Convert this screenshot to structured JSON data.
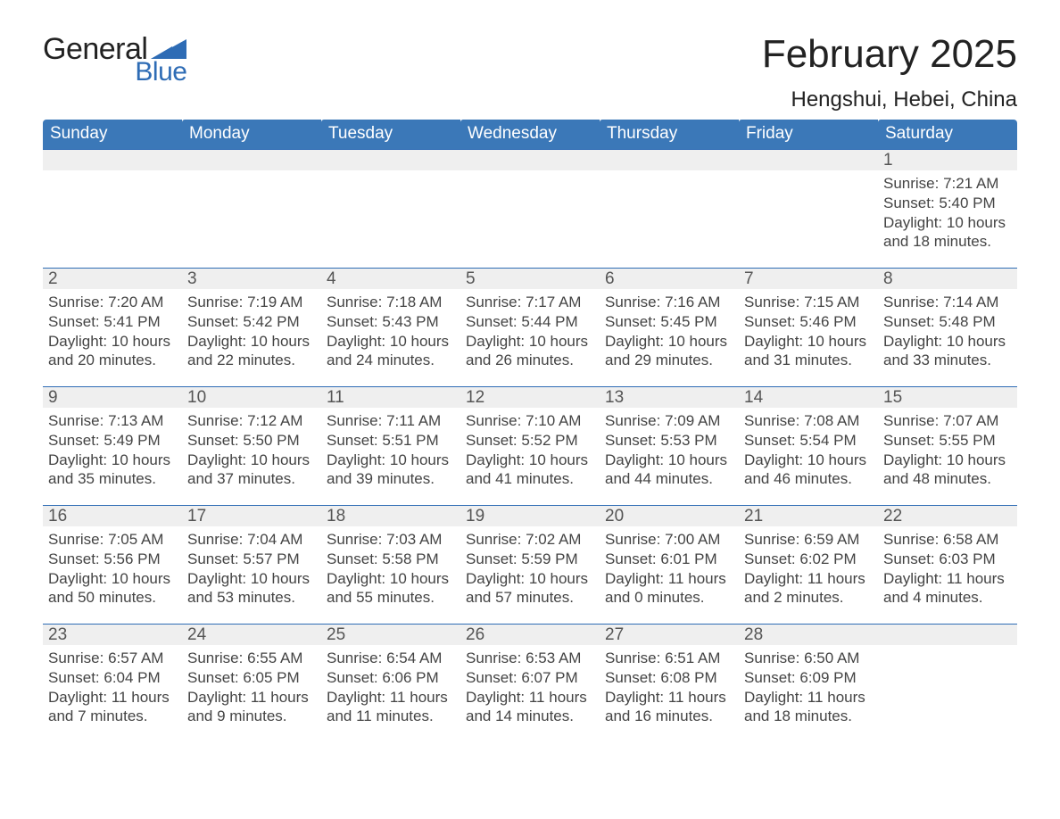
{
  "brand": {
    "word1": "General",
    "word2": "Blue",
    "accent_color": "#2e6cb5"
  },
  "header": {
    "title": "February 2025",
    "location": "Hengshui, Hebei, China"
  },
  "style": {
    "header_bg": "#3b78b8",
    "stripe_bg": "#efefef",
    "border_line": "#2e6cb5",
    "title_fontsize": 44,
    "location_fontsize": 24,
    "weekday_fontsize": 19,
    "body_fontsize": 17
  },
  "weekdays": [
    "Sunday",
    "Monday",
    "Tuesday",
    "Wednesday",
    "Thursday",
    "Friday",
    "Saturday"
  ],
  "labels": {
    "sunrise": "Sunrise: ",
    "sunset": "Sunset: ",
    "daylight": "Daylight: "
  },
  "weeks": [
    [
      null,
      null,
      null,
      null,
      null,
      null,
      {
        "n": "1",
        "sunrise": "7:21 AM",
        "sunset": "5:40 PM",
        "daylight": "10 hours and 18 minutes."
      }
    ],
    [
      {
        "n": "2",
        "sunrise": "7:20 AM",
        "sunset": "5:41 PM",
        "daylight": "10 hours and 20 minutes."
      },
      {
        "n": "3",
        "sunrise": "7:19 AM",
        "sunset": "5:42 PM",
        "daylight": "10 hours and 22 minutes."
      },
      {
        "n": "4",
        "sunrise": "7:18 AM",
        "sunset": "5:43 PM",
        "daylight": "10 hours and 24 minutes."
      },
      {
        "n": "5",
        "sunrise": "7:17 AM",
        "sunset": "5:44 PM",
        "daylight": "10 hours and 26 minutes."
      },
      {
        "n": "6",
        "sunrise": "7:16 AM",
        "sunset": "5:45 PM",
        "daylight": "10 hours and 29 minutes."
      },
      {
        "n": "7",
        "sunrise": "7:15 AM",
        "sunset": "5:46 PM",
        "daylight": "10 hours and 31 minutes."
      },
      {
        "n": "8",
        "sunrise": "7:14 AM",
        "sunset": "5:48 PM",
        "daylight": "10 hours and 33 minutes."
      }
    ],
    [
      {
        "n": "9",
        "sunrise": "7:13 AM",
        "sunset": "5:49 PM",
        "daylight": "10 hours and 35 minutes."
      },
      {
        "n": "10",
        "sunrise": "7:12 AM",
        "sunset": "5:50 PM",
        "daylight": "10 hours and 37 minutes."
      },
      {
        "n": "11",
        "sunrise": "7:11 AM",
        "sunset": "5:51 PM",
        "daylight": "10 hours and 39 minutes."
      },
      {
        "n": "12",
        "sunrise": "7:10 AM",
        "sunset": "5:52 PM",
        "daylight": "10 hours and 41 minutes."
      },
      {
        "n": "13",
        "sunrise": "7:09 AM",
        "sunset": "5:53 PM",
        "daylight": "10 hours and 44 minutes."
      },
      {
        "n": "14",
        "sunrise": "7:08 AM",
        "sunset": "5:54 PM",
        "daylight": "10 hours and 46 minutes."
      },
      {
        "n": "15",
        "sunrise": "7:07 AM",
        "sunset": "5:55 PM",
        "daylight": "10 hours and 48 minutes."
      }
    ],
    [
      {
        "n": "16",
        "sunrise": "7:05 AM",
        "sunset": "5:56 PM",
        "daylight": "10 hours and 50 minutes."
      },
      {
        "n": "17",
        "sunrise": "7:04 AM",
        "sunset": "5:57 PM",
        "daylight": "10 hours and 53 minutes."
      },
      {
        "n": "18",
        "sunrise": "7:03 AM",
        "sunset": "5:58 PM",
        "daylight": "10 hours and 55 minutes."
      },
      {
        "n": "19",
        "sunrise": "7:02 AM",
        "sunset": "5:59 PM",
        "daylight": "10 hours and 57 minutes."
      },
      {
        "n": "20",
        "sunrise": "7:00 AM",
        "sunset": "6:01 PM",
        "daylight": "11 hours and 0 minutes."
      },
      {
        "n": "21",
        "sunrise": "6:59 AM",
        "sunset": "6:02 PM",
        "daylight": "11 hours and 2 minutes."
      },
      {
        "n": "22",
        "sunrise": "6:58 AM",
        "sunset": "6:03 PM",
        "daylight": "11 hours and 4 minutes."
      }
    ],
    [
      {
        "n": "23",
        "sunrise": "6:57 AM",
        "sunset": "6:04 PM",
        "daylight": "11 hours and 7 minutes."
      },
      {
        "n": "24",
        "sunrise": "6:55 AM",
        "sunset": "6:05 PM",
        "daylight": "11 hours and 9 minutes."
      },
      {
        "n": "25",
        "sunrise": "6:54 AM",
        "sunset": "6:06 PM",
        "daylight": "11 hours and 11 minutes."
      },
      {
        "n": "26",
        "sunrise": "6:53 AM",
        "sunset": "6:07 PM",
        "daylight": "11 hours and 14 minutes."
      },
      {
        "n": "27",
        "sunrise": "6:51 AM",
        "sunset": "6:08 PM",
        "daylight": "11 hours and 16 minutes."
      },
      {
        "n": "28",
        "sunrise": "6:50 AM",
        "sunset": "6:09 PM",
        "daylight": "11 hours and 18 minutes."
      },
      null
    ]
  ]
}
